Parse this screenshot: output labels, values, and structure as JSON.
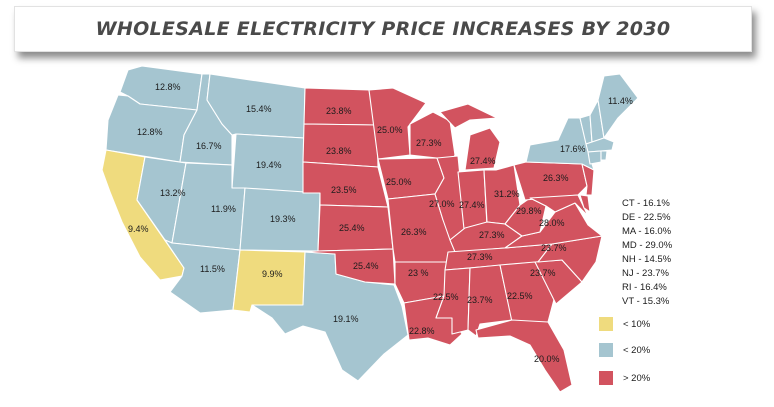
{
  "title": "WHOLESALE ELECTRICITY PRICE INCREASES BY 2030",
  "colors": {
    "low": "#efdb7e",
    "mid": "#a5c5d0",
    "high": "#d2535f"
  },
  "legend": [
    {
      "label": "< 10%",
      "color": "#efdb7e"
    },
    {
      "label": "< 20%",
      "color": "#a5c5d0"
    },
    {
      "label": "> 20%",
      "color": "#d2535f"
    }
  ],
  "small_states": [
    "CT - 16.1%",
    "DE - 22.5%",
    "MA - 16.0%",
    "MD - 29.0%",
    "NH - 14.5%",
    "NJ - 23.7%",
    "RI - 16.4%",
    "VT - 15.3%"
  ],
  "states": {
    "WA": {
      "value": "12.8%",
      "tier": "mid"
    },
    "OR": {
      "value": "12.8%",
      "tier": "mid"
    },
    "CA": {
      "value": "9.4%",
      "tier": "low"
    },
    "NV": {
      "value": "13.2%",
      "tier": "mid"
    },
    "ID": {
      "value": "16.7%",
      "tier": "mid"
    },
    "MT": {
      "value": "15.4%",
      "tier": "mid"
    },
    "WY": {
      "value": "19.4%",
      "tier": "mid"
    },
    "UT": {
      "value": "11.9%",
      "tier": "mid"
    },
    "CO": {
      "value": "19.3%",
      "tier": "mid"
    },
    "AZ": {
      "value": "11.5%",
      "tier": "mid"
    },
    "NM": {
      "value": "9.9%",
      "tier": "low"
    },
    "TX": {
      "value": "19.1%",
      "tier": "mid"
    },
    "ND": {
      "value": "23.8%",
      "tier": "high"
    },
    "SD": {
      "value": "23.8%",
      "tier": "high"
    },
    "NE": {
      "value": "23.5%",
      "tier": "high"
    },
    "KS": {
      "value": "25.4%",
      "tier": "high"
    },
    "OK": {
      "value": "25.4%",
      "tier": "high"
    },
    "MN": {
      "value": "25.0%",
      "tier": "high"
    },
    "IA": {
      "value": "25.0%",
      "tier": "high"
    },
    "MO": {
      "value": "26.3%",
      "tier": "high"
    },
    "AR": {
      "value": "23 %",
      "tier": "high"
    },
    "LA": {
      "value": "22.8%",
      "tier": "high"
    },
    "WI": {
      "value": "27.3%",
      "tier": "high"
    },
    "IL": {
      "value": "27.0%",
      "tier": "high"
    },
    "MI": {
      "value": "27.4%",
      "tier": "high"
    },
    "IN": {
      "value": "27.4%",
      "tier": "high"
    },
    "OH": {
      "value": "31.2%",
      "tier": "high"
    },
    "KY": {
      "value": "27.3%",
      "tier": "high"
    },
    "TN": {
      "value": "27.3%",
      "tier": "high"
    },
    "MS": {
      "value": "22.5%",
      "tier": "high"
    },
    "AL": {
      "value": "23.7%",
      "tier": "high"
    },
    "GA": {
      "value": "22.5%",
      "tier": "high"
    },
    "FL": {
      "value": "20.0%",
      "tier": "high"
    },
    "SC": {
      "value": "23.7%",
      "tier": "high"
    },
    "NC": {
      "value": "23.7%",
      "tier": "high"
    },
    "VA": {
      "value": "28.0%",
      "tier": "high"
    },
    "WV": {
      "value": "29.8%",
      "tier": "high"
    },
    "PA": {
      "value": "26.3%",
      "tier": "high"
    },
    "NY": {
      "value": "17.6%",
      "tier": "mid"
    },
    "ME": {
      "value": "11.4%",
      "tier": "mid"
    },
    "NJ": {
      "tier": "high"
    },
    "DE": {
      "tier": "high"
    },
    "MD": {
      "tier": "high"
    },
    "VT": {
      "tier": "mid"
    },
    "NH": {
      "tier": "mid"
    },
    "MA": {
      "tier": "mid"
    },
    "CT": {
      "tier": "mid"
    },
    "RI": {
      "tier": "mid"
    }
  }
}
